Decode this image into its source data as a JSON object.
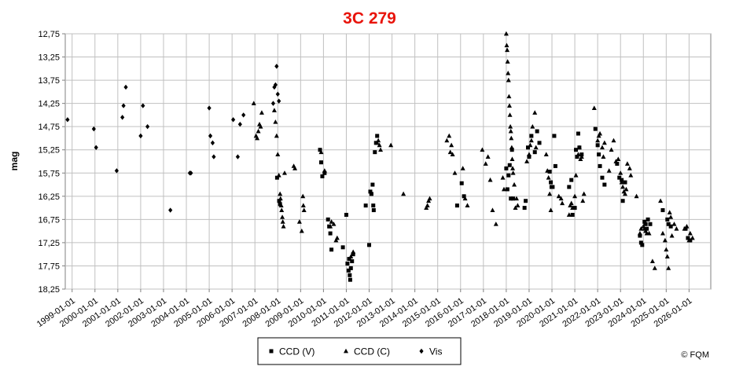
{
  "chart_data": {
    "type": "scatter",
    "title": "3C 279",
    "title_color": "#e8140c",
    "ylabel": "mag",
    "xlabel": "",
    "ylim": [
      12.75,
      18.25
    ],
    "y_inverted": true,
    "y_ticks": [
      "12,75",
      "13,25",
      "13,75",
      "14,25",
      "14,75",
      "15,25",
      "15,75",
      "16,25",
      "16,75",
      "17,25",
      "17,75",
      "18,25"
    ],
    "x_ticks": [
      "1999-01-01",
      "2000-01-01",
      "2001-01-01",
      "2002-01-01",
      "2003-01-01",
      "2004-01-01",
      "2005-01-01",
      "2006-01-01",
      "2007-01-01",
      "2008-01-01",
      "2009-01-01",
      "2010-01-01",
      "2011-01-01",
      "2012-01-01",
      "2013-01-01",
      "2014-01-01",
      "2015-01-01",
      "2016-01-01",
      "2017-01-01",
      "2018-01-01",
      "2019-01-01",
      "2020-01-01",
      "2021-01-01",
      "2022-01-01",
      "2023-01-01",
      "2024-01-01",
      "2025-01-01",
      "2026-01-01"
    ],
    "xlim": [
      1998.7,
      2026.95
    ],
    "grid": true,
    "legend_position": "bottom",
    "credit": "© FQM",
    "series": [
      {
        "name": "CCD (V)",
        "marker": "square",
        "points": [
          [
            2007.97,
            15.85
          ],
          [
            2008.06,
            16.35
          ],
          [
            2008.1,
            16.42
          ],
          [
            2009.85,
            15.25
          ],
          [
            2009.9,
            15.52
          ],
          [
            2009.95,
            15.82
          ],
          [
            2010.05,
            15.75
          ],
          [
            2010.2,
            16.75
          ],
          [
            2010.25,
            16.9
          ],
          [
            2010.3,
            17.05
          ],
          [
            2010.35,
            17.4
          ],
          [
            2010.85,
            17.35
          ],
          [
            2011.0,
            16.65
          ],
          [
            2011.05,
            17.7
          ],
          [
            2011.1,
            17.85
          ],
          [
            2011.12,
            17.6
          ],
          [
            2011.15,
            17.95
          ],
          [
            2011.17,
            18.05
          ],
          [
            2011.2,
            17.8
          ],
          [
            2011.25,
            17.65
          ],
          [
            2011.3,
            17.5
          ],
          [
            2011.85,
            16.45
          ],
          [
            2012.0,
            17.3
          ],
          [
            2012.05,
            16.15
          ],
          [
            2012.1,
            16.2
          ],
          [
            2012.15,
            16.0
          ],
          [
            2012.18,
            16.45
          ],
          [
            2012.2,
            16.55
          ],
          [
            2012.25,
            15.3
          ],
          [
            2012.3,
            15.1
          ],
          [
            2012.35,
            14.95
          ],
          [
            2015.85,
            16.45
          ],
          [
            2016.05,
            15.97
          ],
          [
            2016.15,
            16.25
          ],
          [
            2018.0,
            15.65
          ],
          [
            2018.05,
            16.1
          ],
          [
            2018.1,
            15.8
          ],
          [
            2018.15,
            15.58
          ],
          [
            2018.2,
            16.3
          ],
          [
            2018.25,
            15.25
          ],
          [
            2018.3,
            16.3
          ],
          [
            2018.8,
            16.5
          ],
          [
            2018.85,
            16.35
          ],
          [
            2018.95,
            15.2
          ],
          [
            2019.0,
            15.4
          ],
          [
            2019.1,
            14.95
          ],
          [
            2019.25,
            15.3
          ],
          [
            2019.35,
            14.85
          ],
          [
            2019.45,
            15.1
          ],
          [
            2019.9,
            15.72
          ],
          [
            2019.95,
            15.95
          ],
          [
            2019.98,
            16.05
          ],
          [
            2020.03,
            16.05
          ],
          [
            2020.1,
            14.95
          ],
          [
            2020.15,
            15.6
          ],
          [
            2020.75,
            16.05
          ],
          [
            2020.85,
            15.9
          ],
          [
            2020.9,
            16.65
          ],
          [
            2021.0,
            16.5
          ],
          [
            2021.05,
            15.25
          ],
          [
            2021.1,
            15.4
          ],
          [
            2021.15,
            14.9
          ],
          [
            2021.2,
            15.2
          ],
          [
            2021.3,
            15.35
          ],
          [
            2021.9,
            14.8
          ],
          [
            2022.0,
            15.15
          ],
          [
            2022.05,
            15.35
          ],
          [
            2022.1,
            15.6
          ],
          [
            2022.2,
            15.85
          ],
          [
            2022.3,
            16.0
          ],
          [
            2022.85,
            15.55
          ],
          [
            2022.95,
            15.85
          ],
          [
            2023.05,
            15.9
          ],
          [
            2023.1,
            16.35
          ],
          [
            2023.2,
            15.95
          ],
          [
            2023.85,
            17.1
          ],
          [
            2023.9,
            17.25
          ],
          [
            2023.95,
            17.3
          ],
          [
            2024.05,
            16.8
          ],
          [
            2024.1,
            16.85
          ],
          [
            2024.15,
            16.95
          ],
          [
            2024.2,
            16.75
          ],
          [
            2024.3,
            16.85
          ],
          [
            2024.85,
            16.55
          ],
          [
            2025.05,
            16.75
          ],
          [
            2025.1,
            16.85
          ],
          [
            2025.2,
            16.9
          ],
          [
            2025.85,
            16.95
          ],
          [
            2025.95,
            17.15
          ],
          [
            2026.05,
            17.2
          ]
        ]
      },
      {
        "name": "CCD (C)",
        "marker": "triangle",
        "points": [
          [
            2006.95,
            14.25
          ],
          [
            2007.05,
            14.95
          ],
          [
            2007.1,
            15.0
          ],
          [
            2007.15,
            14.85
          ],
          [
            2007.2,
            14.7
          ],
          [
            2007.25,
            14.75
          ],
          [
            2007.3,
            14.45
          ],
          [
            2007.85,
            14.4
          ],
          [
            2007.9,
            14.65
          ],
          [
            2007.95,
            14.95
          ],
          [
            2008.0,
            15.35
          ],
          [
            2008.05,
            15.8
          ],
          [
            2008.1,
            16.2
          ],
          [
            2008.12,
            16.3
          ],
          [
            2008.15,
            16.45
          ],
          [
            2008.17,
            16.55
          ],
          [
            2008.2,
            16.7
          ],
          [
            2008.22,
            16.8
          ],
          [
            2008.25,
            16.9
          ],
          [
            2008.3,
            15.75
          ],
          [
            2008.7,
            15.6
          ],
          [
            2008.75,
            15.65
          ],
          [
            2008.95,
            16.8
          ],
          [
            2009.05,
            17.0
          ],
          [
            2009.1,
            16.25
          ],
          [
            2009.12,
            16.45
          ],
          [
            2009.15,
            16.55
          ],
          [
            2009.9,
            15.3
          ],
          [
            2010.05,
            15.7
          ],
          [
            2010.3,
            16.9
          ],
          [
            2010.35,
            16.8
          ],
          [
            2010.45,
            16.85
          ],
          [
            2010.55,
            17.2
          ],
          [
            2010.6,
            17.15
          ],
          [
            2011.15,
            17.6
          ],
          [
            2011.2,
            17.55
          ],
          [
            2011.3,
            17.45
          ],
          [
            2012.35,
            15.1
          ],
          [
            2012.4,
            15.05
          ],
          [
            2012.45,
            15.15
          ],
          [
            2012.5,
            15.25
          ],
          [
            2012.95,
            15.15
          ],
          [
            2013.5,
            16.2
          ],
          [
            2014.5,
            16.5
          ],
          [
            2014.55,
            16.45
          ],
          [
            2014.6,
            16.35
          ],
          [
            2014.65,
            16.3
          ],
          [
            2015.4,
            15.05
          ],
          [
            2015.5,
            14.95
          ],
          [
            2015.55,
            15.3
          ],
          [
            2015.6,
            15.15
          ],
          [
            2015.65,
            15.35
          ],
          [
            2015.75,
            15.75
          ],
          [
            2016.1,
            15.65
          ],
          [
            2016.2,
            16.3
          ],
          [
            2016.3,
            16.45
          ],
          [
            2016.95,
            15.25
          ],
          [
            2017.1,
            15.55
          ],
          [
            2017.2,
            15.4
          ],
          [
            2017.3,
            15.9
          ],
          [
            2017.4,
            16.55
          ],
          [
            2017.55,
            16.85
          ],
          [
            2017.85,
            15.85
          ],
          [
            2017.9,
            16.1
          ],
          [
            2018.0,
            12.75
          ],
          [
            2018.02,
            13.0
          ],
          [
            2018.04,
            13.1
          ],
          [
            2018.06,
            13.35
          ],
          [
            2018.08,
            13.6
          ],
          [
            2018.1,
            13.75
          ],
          [
            2018.12,
            14.1
          ],
          [
            2018.14,
            14.3
          ],
          [
            2018.16,
            14.5
          ],
          [
            2018.18,
            14.75
          ],
          [
            2018.2,
            14.85
          ],
          [
            2018.22,
            15.0
          ],
          [
            2018.24,
            15.2
          ],
          [
            2018.26,
            15.45
          ],
          [
            2018.28,
            15.65
          ],
          [
            2018.3,
            15.75
          ],
          [
            2018.35,
            16.0
          ],
          [
            2018.4,
            16.5
          ],
          [
            2018.45,
            16.3
          ],
          [
            2018.5,
            16.45
          ],
          [
            2018.9,
            15.5
          ],
          [
            2019.0,
            15.35
          ],
          [
            2019.05,
            15.15
          ],
          [
            2019.1,
            15.05
          ],
          [
            2019.15,
            14.75
          ],
          [
            2019.25,
            14.45
          ],
          [
            2019.3,
            15.2
          ],
          [
            2019.75,
            15.35
          ],
          [
            2019.8,
            15.7
          ],
          [
            2019.85,
            15.85
          ],
          [
            2019.9,
            16.2
          ],
          [
            2019.95,
            16.55
          ],
          [
            2020.3,
            16.25
          ],
          [
            2020.4,
            16.3
          ],
          [
            2020.45,
            16.4
          ],
          [
            2020.75,
            16.65
          ],
          [
            2020.8,
            16.45
          ],
          [
            2020.85,
            16.4
          ],
          [
            2020.9,
            16.5
          ],
          [
            2021.0,
            16.25
          ],
          [
            2021.05,
            15.8
          ],
          [
            2021.15,
            15.35
          ],
          [
            2021.2,
            15.2
          ],
          [
            2021.25,
            15.45
          ],
          [
            2021.3,
            15.4
          ],
          [
            2021.35,
            16.35
          ],
          [
            2021.4,
            16.2
          ],
          [
            2021.85,
            14.35
          ],
          [
            2022.0,
            15.05
          ],
          [
            2022.05,
            14.95
          ],
          [
            2022.1,
            14.9
          ],
          [
            2022.2,
            15.2
          ],
          [
            2022.25,
            15.4
          ],
          [
            2022.3,
            15.1
          ],
          [
            2022.5,
            15.7
          ],
          [
            2022.6,
            15.25
          ],
          [
            2022.7,
            15.05
          ],
          [
            2022.8,
            15.5
          ],
          [
            2022.9,
            15.45
          ],
          [
            2023.0,
            15.75
          ],
          [
            2023.05,
            15.95
          ],
          [
            2023.1,
            16.05
          ],
          [
            2023.15,
            16.15
          ],
          [
            2023.2,
            16.2
          ],
          [
            2023.25,
            16.1
          ],
          [
            2023.3,
            15.55
          ],
          [
            2023.4,
            15.65
          ],
          [
            2023.45,
            15.8
          ],
          [
            2023.7,
            16.25
          ],
          [
            2023.85,
            17.05
          ],
          [
            2023.9,
            16.95
          ],
          [
            2024.0,
            16.9
          ],
          [
            2024.05,
            16.95
          ],
          [
            2024.1,
            17.0
          ],
          [
            2024.15,
            17.05
          ],
          [
            2024.25,
            17.05
          ],
          [
            2024.4,
            17.65
          ],
          [
            2024.5,
            17.8
          ],
          [
            2024.75,
            16.35
          ],
          [
            2024.85,
            17.05
          ],
          [
            2024.95,
            17.2
          ],
          [
            2025.0,
            17.4
          ],
          [
            2025.05,
            17.55
          ],
          [
            2025.1,
            17.8
          ],
          [
            2025.15,
            16.6
          ],
          [
            2025.2,
            16.7
          ],
          [
            2025.25,
            17.1
          ],
          [
            2025.35,
            16.85
          ],
          [
            2025.45,
            16.95
          ],
          [
            2025.8,
            16.95
          ],
          [
            2025.9,
            16.9
          ],
          [
            2026.0,
            17.2
          ],
          [
            2026.05,
            17.05
          ],
          [
            2026.15,
            17.15
          ]
        ]
      },
      {
        "name": "Vis",
        "marker": "diamond",
        "points": [
          [
            1998.8,
            14.6
          ],
          [
            1999.95,
            14.8
          ],
          [
            2000.05,
            15.2
          ],
          [
            2000.95,
            15.7
          ],
          [
            2001.2,
            14.55
          ],
          [
            2001.25,
            14.3
          ],
          [
            2001.35,
            13.9
          ],
          [
            2002.0,
            14.95
          ],
          [
            2002.1,
            14.3
          ],
          [
            2002.3,
            14.75
          ],
          [
            2003.3,
            16.55
          ],
          [
            2004.15,
            15.75
          ],
          [
            2004.2,
            15.75
          ],
          [
            2005.0,
            14.35
          ],
          [
            2005.05,
            14.95
          ],
          [
            2005.15,
            15.1
          ],
          [
            2005.2,
            15.4
          ],
          [
            2006.05,
            14.6
          ],
          [
            2006.25,
            15.4
          ],
          [
            2006.35,
            14.7
          ],
          [
            2006.5,
            14.5
          ],
          [
            2007.8,
            14.25
          ],
          [
            2007.85,
            13.9
          ],
          [
            2007.9,
            13.85
          ],
          [
            2007.95,
            13.45
          ],
          [
            2008.0,
            14.05
          ],
          [
            2008.05,
            14.2
          ]
        ]
      }
    ]
  }
}
